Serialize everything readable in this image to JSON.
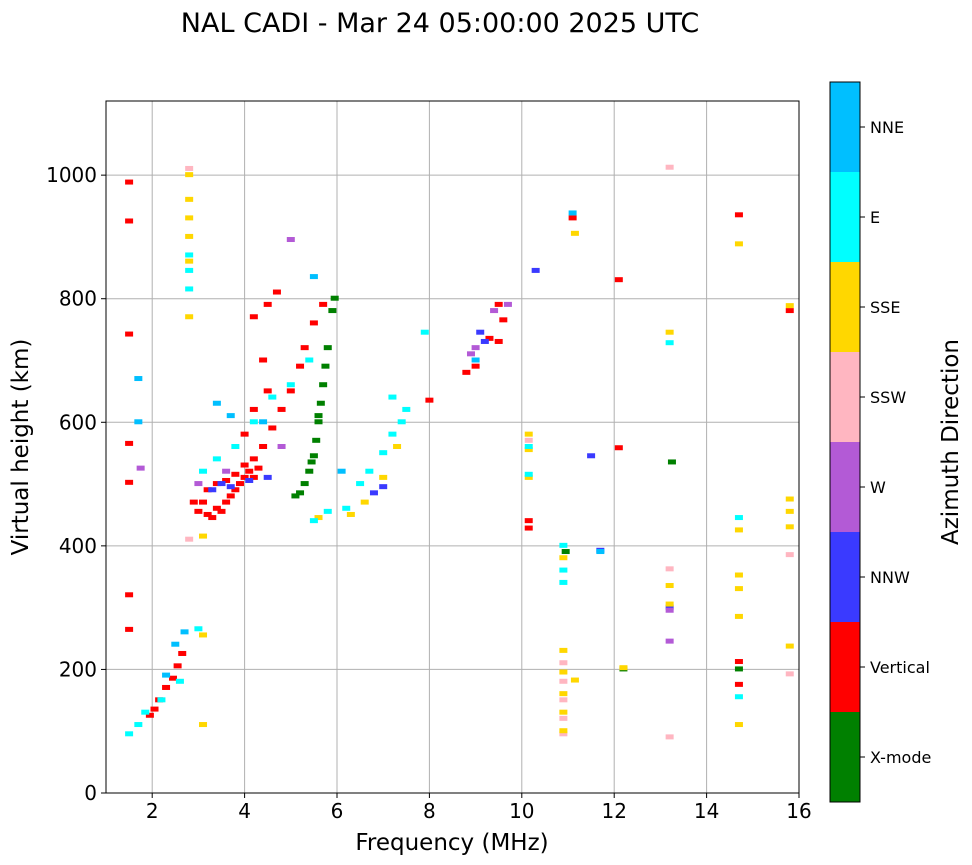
{
  "chart_data": {
    "type": "scatter",
    "title": "NAL CADI - Mar 24 05:00:00 2025 UTC",
    "xlabel": "Frequency (MHz)",
    "ylabel": "Virtual height (km)",
    "xlim": [
      1,
      16
    ],
    "ylim": [
      0,
      1120
    ],
    "xticks": [
      2,
      4,
      6,
      8,
      10,
      12,
      14,
      16
    ],
    "yticks": [
      0,
      200,
      400,
      600,
      800,
      1000
    ],
    "grid": true,
    "colorbar": {
      "title": "Azimuth Direction",
      "entries": [
        {
          "label": "X-mode",
          "color": "#008000"
        },
        {
          "label": "Vertical",
          "color": "#ff0000"
        },
        {
          "label": "NNW",
          "color": "#3a3aff"
        },
        {
          "label": "W",
          "color": "#b35ad6"
        },
        {
          "label": "SSW",
          "color": "#ffb6c1"
        },
        {
          "label": "SSE",
          "color": "#ffd700"
        },
        {
          "label": "E",
          "color": "#00ffff"
        },
        {
          "label": "NNE",
          "color": "#00bfff"
        }
      ]
    },
    "series": [
      {
        "name": "X-mode",
        "color": "#008000",
        "points": [
          [
            5.2,
            485
          ],
          [
            5.3,
            500
          ],
          [
            5.4,
            520
          ],
          [
            5.5,
            545
          ],
          [
            5.55,
            570
          ],
          [
            5.6,
            600
          ],
          [
            5.65,
            630
          ],
          [
            5.7,
            660
          ],
          [
            5.75,
            690
          ],
          [
            5.8,
            720
          ],
          [
            5.9,
            780
          ],
          [
            5.95,
            800
          ],
          [
            5.1,
            480
          ],
          [
            5.45,
            535
          ],
          [
            5.6,
            610
          ],
          [
            10.95,
            390
          ],
          [
            13.25,
            535
          ],
          [
            12.2,
            200
          ],
          [
            14.7,
            200
          ]
        ]
      },
      {
        "name": "Vertical",
        "color": "#ff0000",
        "points": [
          [
            1.5,
            988
          ],
          [
            1.5,
            925
          ],
          [
            1.5,
            742
          ],
          [
            1.5,
            565
          ],
          [
            1.5,
            502
          ],
          [
            1.5,
            320
          ],
          [
            1.5,
            264
          ],
          [
            1.95,
            125
          ],
          [
            2.05,
            135
          ],
          [
            2.15,
            150
          ],
          [
            2.3,
            170
          ],
          [
            2.45,
            185
          ],
          [
            2.55,
            205
          ],
          [
            2.65,
            225
          ],
          [
            2.9,
            470
          ],
          [
            3.0,
            455
          ],
          [
            3.1,
            470
          ],
          [
            3.2,
            450
          ],
          [
            3.3,
            445
          ],
          [
            3.4,
            460
          ],
          [
            3.5,
            455
          ],
          [
            3.6,
            470
          ],
          [
            3.7,
            480
          ],
          [
            3.8,
            490
          ],
          [
            3.9,
            500
          ],
          [
            4.0,
            510
          ],
          [
            4.1,
            520
          ],
          [
            4.2,
            510
          ],
          [
            4.3,
            525
          ],
          [
            3.2,
            490
          ],
          [
            3.4,
            500
          ],
          [
            3.6,
            505
          ],
          [
            3.8,
            515
          ],
          [
            4.0,
            530
          ],
          [
            4.2,
            540
          ],
          [
            4.4,
            560
          ],
          [
            4.6,
            590
          ],
          [
            4.8,
            620
          ],
          [
            5.0,
            650
          ],
          [
            5.2,
            690
          ],
          [
            5.3,
            720
          ],
          [
            5.5,
            760
          ],
          [
            5.7,
            790
          ],
          [
            4.0,
            580
          ],
          [
            4.2,
            620
          ],
          [
            4.5,
            650
          ],
          [
            4.4,
            700
          ],
          [
            4.2,
            770
          ],
          [
            4.5,
            790
          ],
          [
            4.7,
            810
          ],
          [
            8.0,
            635
          ],
          [
            8.8,
            680
          ],
          [
            9.0,
            690
          ],
          [
            9.3,
            735
          ],
          [
            9.5,
            730
          ],
          [
            9.6,
            765
          ],
          [
            9.5,
            790
          ],
          [
            10.15,
            440
          ],
          [
            10.15,
            428
          ],
          [
            11.1,
            930
          ],
          [
            12.1,
            830
          ],
          [
            12.1,
            558
          ],
          [
            14.7,
            935
          ],
          [
            14.7,
            212
          ],
          [
            14.7,
            175
          ],
          [
            15.8,
            780
          ]
        ]
      },
      {
        "name": "NNW",
        "color": "#3a3aff",
        "points": [
          [
            3.3,
            490
          ],
          [
            3.5,
            500
          ],
          [
            3.7,
            495
          ],
          [
            4.1,
            505
          ],
          [
            4.5,
            510
          ],
          [
            6.8,
            485
          ],
          [
            7.0,
            495
          ],
          [
            9.1,
            745
          ],
          [
            9.2,
            730
          ],
          [
            10.3,
            845
          ],
          [
            11.5,
            545
          ],
          [
            11.7,
            392
          ],
          [
            13.2,
            300
          ]
        ]
      },
      {
        "name": "W",
        "color": "#b35ad6",
        "points": [
          [
            1.75,
            525
          ],
          [
            3.0,
            500
          ],
          [
            3.6,
            520
          ],
          [
            4.8,
            560
          ],
          [
            5.0,
            895
          ],
          [
            8.9,
            710
          ],
          [
            9.0,
            720
          ],
          [
            9.4,
            780
          ],
          [
            9.7,
            790
          ],
          [
            13.2,
            295
          ],
          [
            13.2,
            245
          ]
        ]
      },
      {
        "name": "SSW",
        "color": "#ffb6c1",
        "points": [
          [
            2.8,
            410
          ],
          [
            2.8,
            1010
          ],
          [
            10.15,
            570
          ],
          [
            10.9,
            95
          ],
          [
            10.9,
            120
          ],
          [
            10.9,
            150
          ],
          [
            10.9,
            180
          ],
          [
            10.9,
            210
          ],
          [
            13.2,
            1012
          ],
          [
            13.2,
            362
          ],
          [
            13.2,
            90
          ],
          [
            15.8,
            385
          ],
          [
            15.8,
            192
          ]
        ]
      },
      {
        "name": "SSE",
        "color": "#ffd700",
        "points": [
          [
            2.8,
            1000
          ],
          [
            2.8,
            960
          ],
          [
            2.8,
            930
          ],
          [
            2.8,
            900
          ],
          [
            2.8,
            860
          ],
          [
            2.8,
            770
          ],
          [
            3.1,
            255
          ],
          [
            3.1,
            110
          ],
          [
            3.1,
            415
          ],
          [
            5.6,
            445
          ],
          [
            6.3,
            450
          ],
          [
            6.6,
            470
          ],
          [
            7.0,
            510
          ],
          [
            7.3,
            560
          ],
          [
            10.15,
            580
          ],
          [
            10.15,
            555
          ],
          [
            10.15,
            510
          ],
          [
            10.9,
            100
          ],
          [
            10.9,
            130
          ],
          [
            10.9,
            160
          ],
          [
            10.9,
            195
          ],
          [
            10.9,
            230
          ],
          [
            10.9,
            380
          ],
          [
            11.15,
            905
          ],
          [
            11.15,
            182
          ],
          [
            12.2,
            202
          ],
          [
            13.2,
            745
          ],
          [
            13.2,
            335
          ],
          [
            13.2,
            305
          ],
          [
            14.7,
            888
          ],
          [
            14.7,
            425
          ],
          [
            14.7,
            352
          ],
          [
            14.7,
            330
          ],
          [
            14.7,
            285
          ],
          [
            14.7,
            110
          ],
          [
            15.8,
            788
          ],
          [
            15.8,
            475
          ],
          [
            15.8,
            455
          ],
          [
            15.8,
            430
          ],
          [
            15.8,
            237
          ]
        ]
      },
      {
        "name": "E",
        "color": "#00ffff",
        "points": [
          [
            1.5,
            95
          ],
          [
            1.7,
            110
          ],
          [
            1.85,
            130
          ],
          [
            2.2,
            150
          ],
          [
            2.6,
            180
          ],
          [
            3.0,
            265
          ],
          [
            2.8,
            815
          ],
          [
            2.8,
            845
          ],
          [
            2.8,
            870
          ],
          [
            3.1,
            520
          ],
          [
            3.4,
            540
          ],
          [
            3.8,
            560
          ],
          [
            4.2,
            600
          ],
          [
            4.6,
            640
          ],
          [
            5.0,
            660
          ],
          [
            5.4,
            700
          ],
          [
            5.5,
            440
          ],
          [
            5.8,
            455
          ],
          [
            6.2,
            460
          ],
          [
            6.5,
            500
          ],
          [
            6.7,
            520
          ],
          [
            7.0,
            550
          ],
          [
            7.2,
            580
          ],
          [
            7.4,
            600
          ],
          [
            7.5,
            620
          ],
          [
            7.2,
            640
          ],
          [
            7.9,
            745
          ],
          [
            10.15,
            560
          ],
          [
            10.15,
            515
          ],
          [
            10.9,
            340
          ],
          [
            10.9,
            360
          ],
          [
            10.9,
            400
          ],
          [
            13.2,
            728
          ],
          [
            14.7,
            445
          ],
          [
            14.7,
            155
          ]
        ]
      },
      {
        "name": "NNE",
        "color": "#00bfff",
        "points": [
          [
            1.7,
            670
          ],
          [
            1.7,
            600
          ],
          [
            2.3,
            190
          ],
          [
            2.5,
            240
          ],
          [
            2.7,
            260
          ],
          [
            3.4,
            630
          ],
          [
            3.7,
            610
          ],
          [
            4.4,
            600
          ],
          [
            5.5,
            835
          ],
          [
            6.1,
            520
          ],
          [
            9.0,
            700
          ],
          [
            11.1,
            938
          ],
          [
            11.7,
            390
          ]
        ]
      }
    ]
  }
}
